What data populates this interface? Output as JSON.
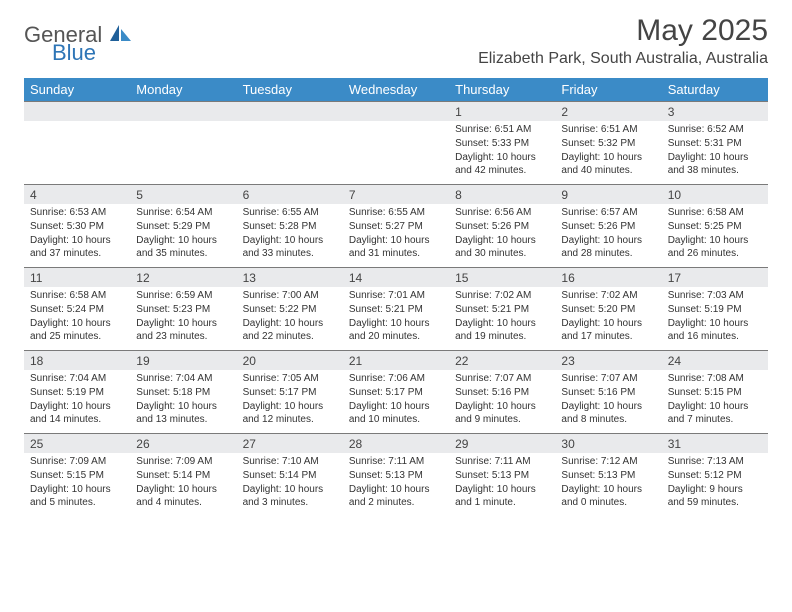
{
  "brand": {
    "general": "General",
    "blue": "Blue"
  },
  "title": "May 2025",
  "location": "Elizabeth Park, South Australia, Australia",
  "colors": {
    "header_bg": "#3b8bc7",
    "header_text": "#ffffff",
    "daynum_bg": "#e9eaec",
    "cell_border": "#7a7a7a",
    "text": "#333333",
    "brand_blue": "#2e75b6"
  },
  "day_headers": [
    "Sunday",
    "Monday",
    "Tuesday",
    "Wednesday",
    "Thursday",
    "Friday",
    "Saturday"
  ],
  "weeks": [
    {
      "nums": [
        "",
        "",
        "",
        "",
        "1",
        "2",
        "3"
      ],
      "cells": [
        null,
        null,
        null,
        null,
        {
          "sunrise": "6:51 AM",
          "sunset": "5:33 PM",
          "daylight": "10 hours and 42 minutes."
        },
        {
          "sunrise": "6:51 AM",
          "sunset": "5:32 PM",
          "daylight": "10 hours and 40 minutes."
        },
        {
          "sunrise": "6:52 AM",
          "sunset": "5:31 PM",
          "daylight": "10 hours and 38 minutes."
        }
      ]
    },
    {
      "nums": [
        "4",
        "5",
        "6",
        "7",
        "8",
        "9",
        "10"
      ],
      "cells": [
        {
          "sunrise": "6:53 AM",
          "sunset": "5:30 PM",
          "daylight": "10 hours and 37 minutes."
        },
        {
          "sunrise": "6:54 AM",
          "sunset": "5:29 PM",
          "daylight": "10 hours and 35 minutes."
        },
        {
          "sunrise": "6:55 AM",
          "sunset": "5:28 PM",
          "daylight": "10 hours and 33 minutes."
        },
        {
          "sunrise": "6:55 AM",
          "sunset": "5:27 PM",
          "daylight": "10 hours and 31 minutes."
        },
        {
          "sunrise": "6:56 AM",
          "sunset": "5:26 PM",
          "daylight": "10 hours and 30 minutes."
        },
        {
          "sunrise": "6:57 AM",
          "sunset": "5:26 PM",
          "daylight": "10 hours and 28 minutes."
        },
        {
          "sunrise": "6:58 AM",
          "sunset": "5:25 PM",
          "daylight": "10 hours and 26 minutes."
        }
      ]
    },
    {
      "nums": [
        "11",
        "12",
        "13",
        "14",
        "15",
        "16",
        "17"
      ],
      "cells": [
        {
          "sunrise": "6:58 AM",
          "sunset": "5:24 PM",
          "daylight": "10 hours and 25 minutes."
        },
        {
          "sunrise": "6:59 AM",
          "sunset": "5:23 PM",
          "daylight": "10 hours and 23 minutes."
        },
        {
          "sunrise": "7:00 AM",
          "sunset": "5:22 PM",
          "daylight": "10 hours and 22 minutes."
        },
        {
          "sunrise": "7:01 AM",
          "sunset": "5:21 PM",
          "daylight": "10 hours and 20 minutes."
        },
        {
          "sunrise": "7:02 AM",
          "sunset": "5:21 PM",
          "daylight": "10 hours and 19 minutes."
        },
        {
          "sunrise": "7:02 AM",
          "sunset": "5:20 PM",
          "daylight": "10 hours and 17 minutes."
        },
        {
          "sunrise": "7:03 AM",
          "sunset": "5:19 PM",
          "daylight": "10 hours and 16 minutes."
        }
      ]
    },
    {
      "nums": [
        "18",
        "19",
        "20",
        "21",
        "22",
        "23",
        "24"
      ],
      "cells": [
        {
          "sunrise": "7:04 AM",
          "sunset": "5:19 PM",
          "daylight": "10 hours and 14 minutes."
        },
        {
          "sunrise": "7:04 AM",
          "sunset": "5:18 PM",
          "daylight": "10 hours and 13 minutes."
        },
        {
          "sunrise": "7:05 AM",
          "sunset": "5:17 PM",
          "daylight": "10 hours and 12 minutes."
        },
        {
          "sunrise": "7:06 AM",
          "sunset": "5:17 PM",
          "daylight": "10 hours and 10 minutes."
        },
        {
          "sunrise": "7:07 AM",
          "sunset": "5:16 PM",
          "daylight": "10 hours and 9 minutes."
        },
        {
          "sunrise": "7:07 AM",
          "sunset": "5:16 PM",
          "daylight": "10 hours and 8 minutes."
        },
        {
          "sunrise": "7:08 AM",
          "sunset": "5:15 PM",
          "daylight": "10 hours and 7 minutes."
        }
      ]
    },
    {
      "nums": [
        "25",
        "26",
        "27",
        "28",
        "29",
        "30",
        "31"
      ],
      "cells": [
        {
          "sunrise": "7:09 AM",
          "sunset": "5:15 PM",
          "daylight": "10 hours and 5 minutes."
        },
        {
          "sunrise": "7:09 AM",
          "sunset": "5:14 PM",
          "daylight": "10 hours and 4 minutes."
        },
        {
          "sunrise": "7:10 AM",
          "sunset": "5:14 PM",
          "daylight": "10 hours and 3 minutes."
        },
        {
          "sunrise": "7:11 AM",
          "sunset": "5:13 PM",
          "daylight": "10 hours and 2 minutes."
        },
        {
          "sunrise": "7:11 AM",
          "sunset": "5:13 PM",
          "daylight": "10 hours and 1 minute."
        },
        {
          "sunrise": "7:12 AM",
          "sunset": "5:13 PM",
          "daylight": "10 hours and 0 minutes."
        },
        {
          "sunrise": "7:13 AM",
          "sunset": "5:12 PM",
          "daylight": "9 hours and 59 minutes."
        }
      ]
    }
  ],
  "labels": {
    "sunrise": "Sunrise: ",
    "sunset": "Sunset: ",
    "daylight": "Daylight: "
  }
}
